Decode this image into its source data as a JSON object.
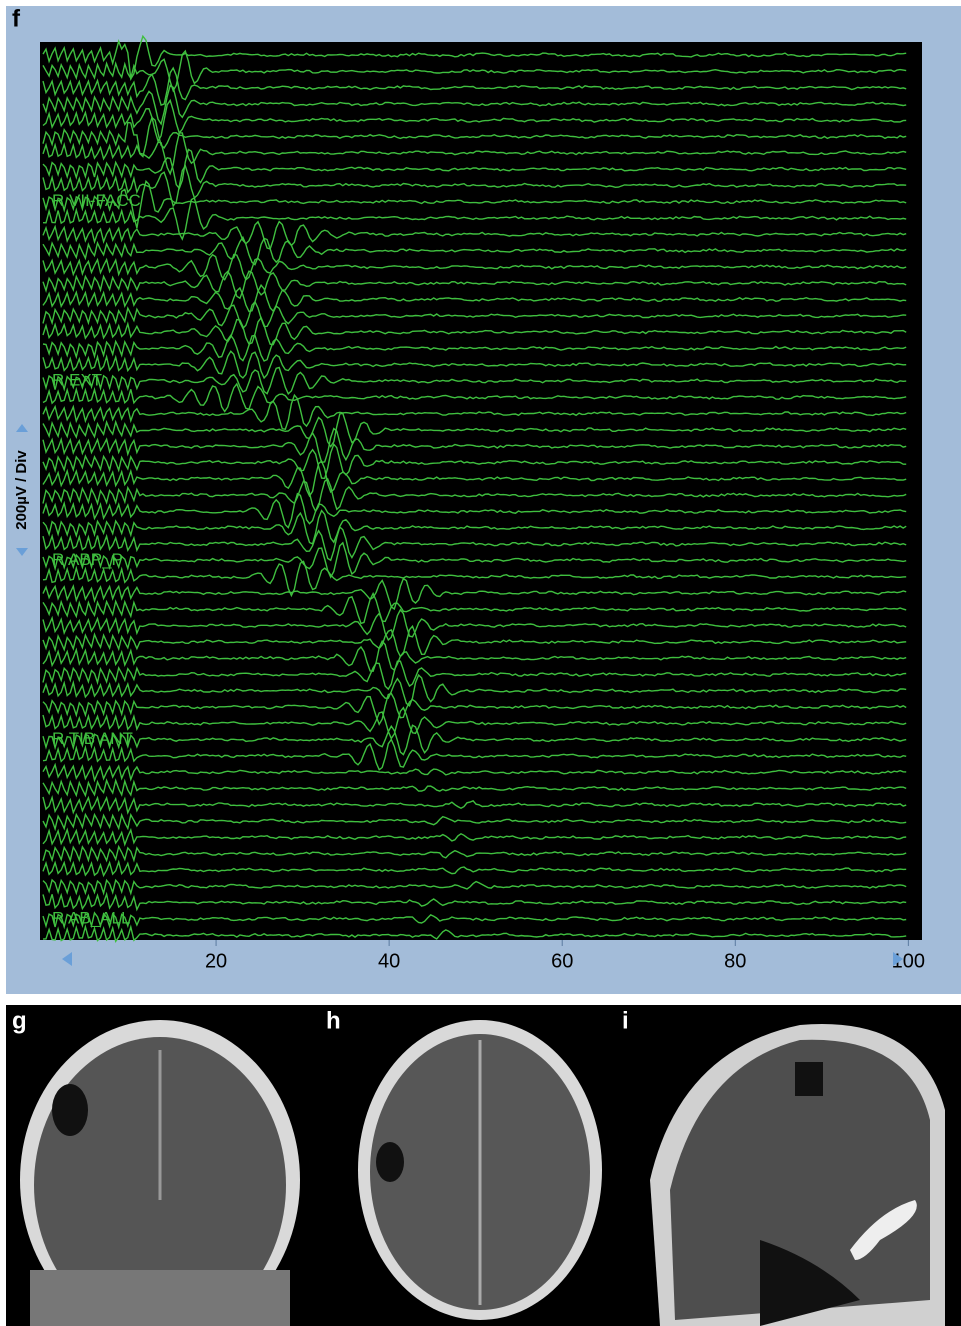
{
  "panel_f": {
    "label": "f",
    "y_scale": "200µV / Div",
    "channels": [
      "R VII-FACC",
      "R EXT",
      "R ABP_P",
      "R TIB ANT",
      "R AB_ALL"
    ],
    "xlim": [
      0,
      101
    ],
    "xticks": [
      20,
      40,
      60,
      80,
      100
    ]
  },
  "panel_g": {
    "label": "g"
  },
  "panel_h": {
    "label": "h"
  },
  "panel_i": {
    "label": "i"
  }
}
